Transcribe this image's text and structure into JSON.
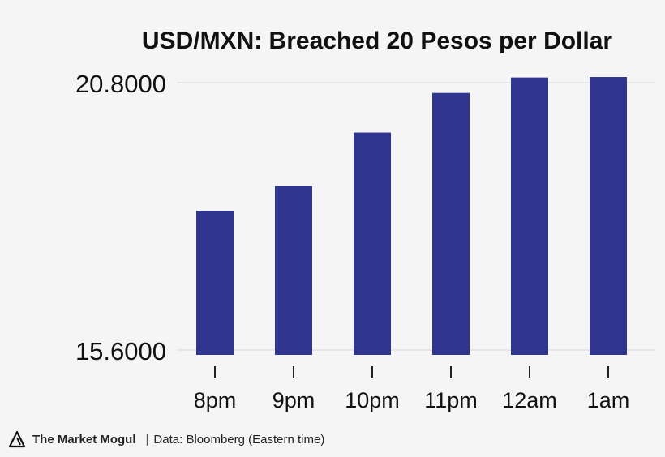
{
  "chart_data": {
    "type": "bar",
    "title": "USD/MXN: Breached 20 Pesos per Dollar",
    "categories": [
      "8pm",
      "9pm",
      "10pm",
      "11pm",
      "12am",
      "1am"
    ],
    "values": [
      18.31,
      18.79,
      19.83,
      20.6,
      20.9,
      20.91
    ],
    "ylim": [
      15.6,
      20.8
    ],
    "yticks": [
      "20.8000",
      "15.6000"
    ],
    "xlabel": "",
    "ylabel": "",
    "bar_color": "#30368f",
    "grid": true
  },
  "footer": {
    "brand": "The Market Mogul",
    "separator": "|",
    "source": "Data: Bloomberg (Eastern time)"
  }
}
